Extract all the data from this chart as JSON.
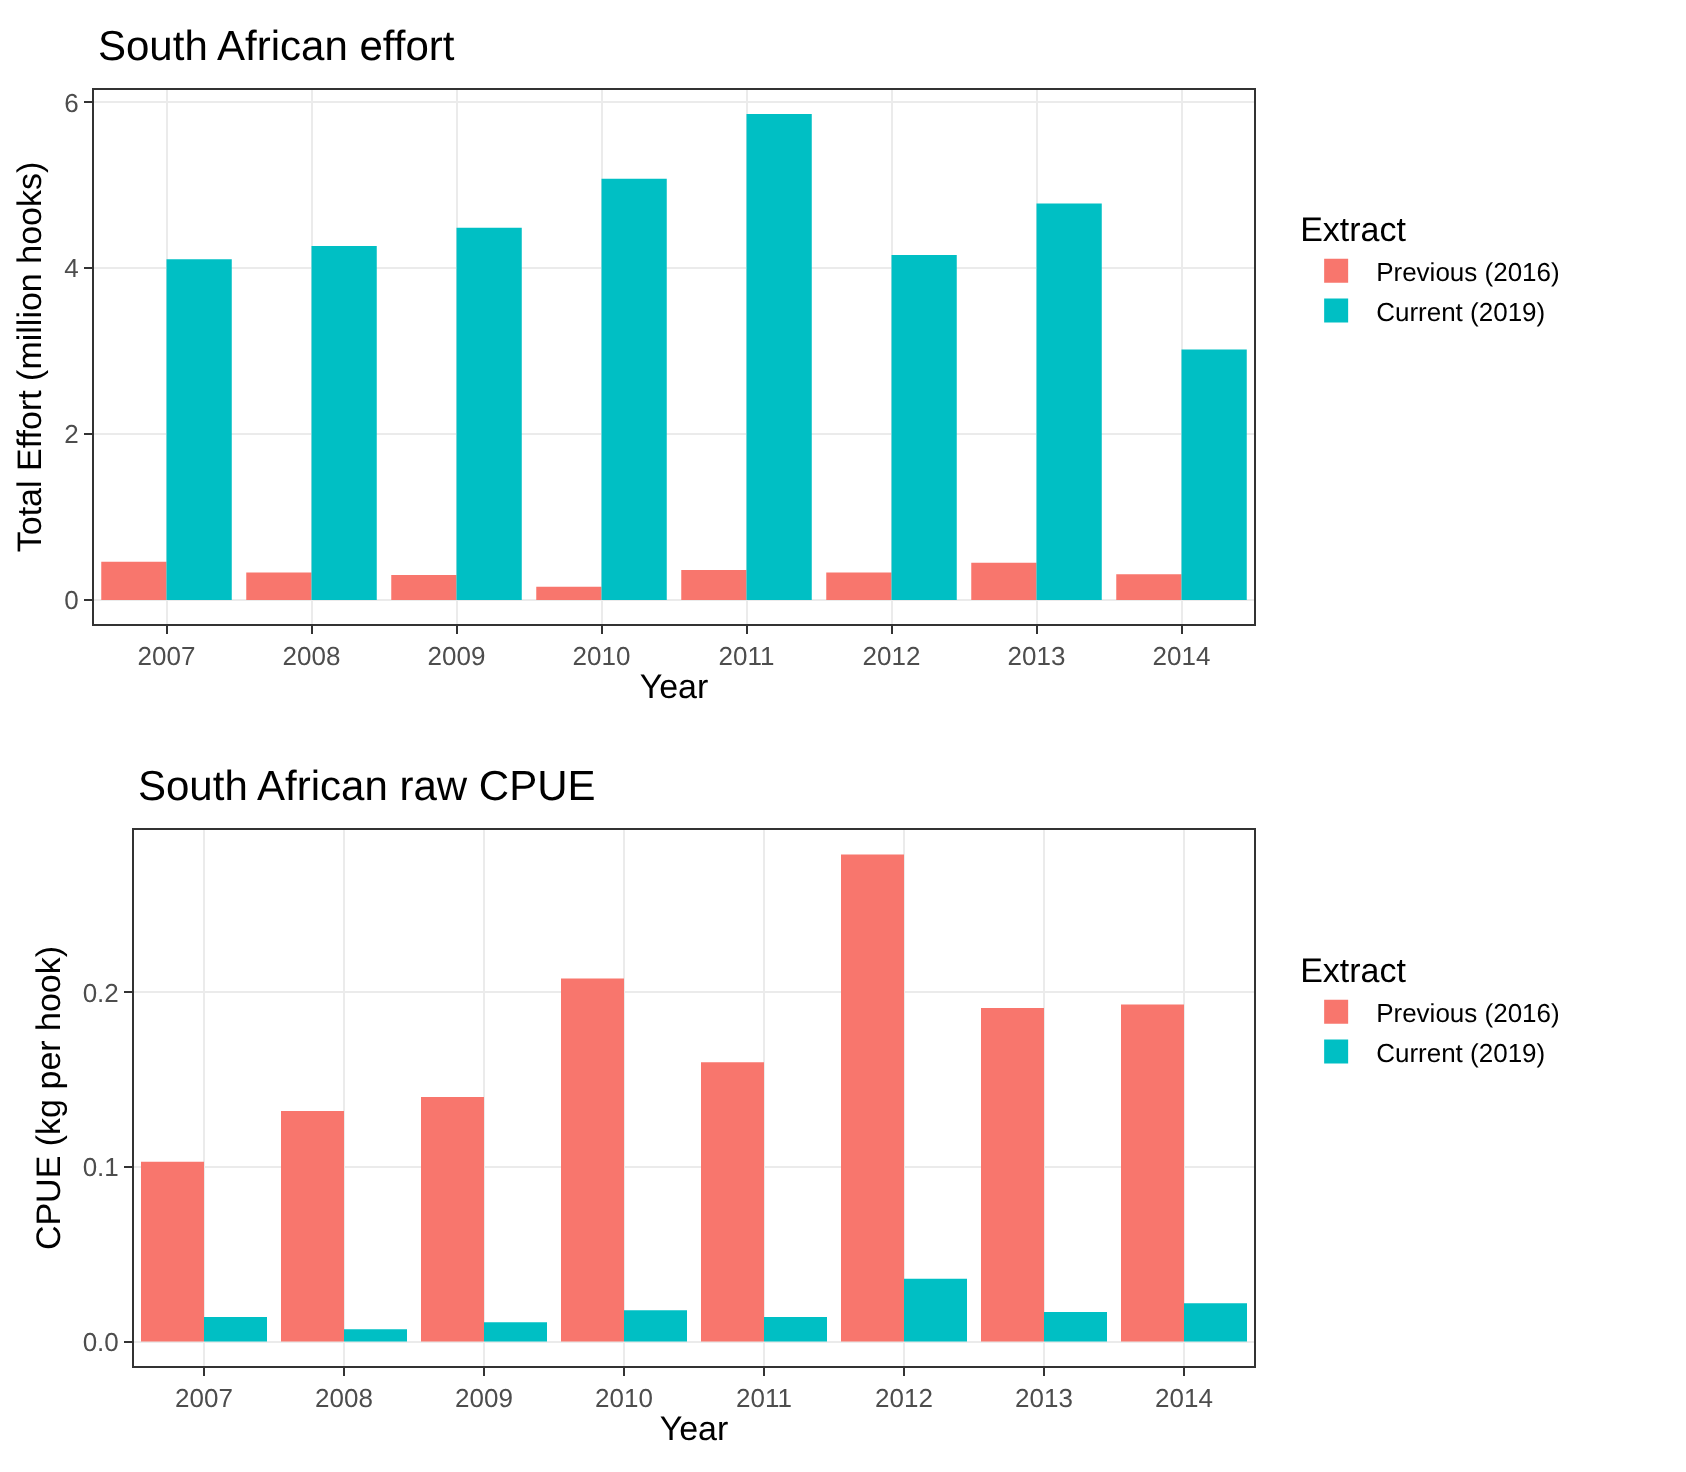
{
  "chart_data": [
    {
      "type": "bar",
      "title": "South African effort",
      "xlabel": "Year",
      "ylabel": "Total Effort (million hooks)",
      "legend_title": "Extract",
      "categories": [
        "2007",
        "2008",
        "2009",
        "2010",
        "2011",
        "2012",
        "2013",
        "2014"
      ],
      "series": [
        {
          "name": "Previous (2016)",
          "color": "#f8766d",
          "values": [
            0.46,
            0.33,
            0.3,
            0.16,
            0.36,
            0.33,
            0.45,
            0.31
          ]
        },
        {
          "name": "Current (2019)",
          "color": "#00bfc4",
          "values": [
            4.11,
            4.27,
            4.49,
            5.08,
            5.86,
            4.16,
            4.78,
            3.02
          ]
        }
      ],
      "ylim": [
        -0.29,
        6.15
      ],
      "yticks": [
        0,
        2,
        4,
        6
      ],
      "grid": true,
      "legend": "right"
    },
    {
      "type": "bar",
      "title": "South African raw CPUE",
      "xlabel": "Year",
      "ylabel": "CPUE (kg per hook)",
      "legend_title": "Extract",
      "categories": [
        "2007",
        "2008",
        "2009",
        "2010",
        "2011",
        "2012",
        "2013",
        "2014"
      ],
      "series": [
        {
          "name": "Previous (2016)",
          "color": "#f8766d",
          "values": [
            0.103,
            0.132,
            0.14,
            0.208,
            0.16,
            0.279,
            0.191,
            0.193
          ]
        },
        {
          "name": "Current (2019)",
          "color": "#00bfc4",
          "values": [
            0.014,
            0.007,
            0.011,
            0.018,
            0.014,
            0.036,
            0.017,
            0.022
          ]
        }
      ],
      "ylim": [
        -0.014,
        0.293
      ],
      "yticks": [
        {
          "value": 0,
          "label": "0.0"
        },
        {
          "value": 0.1,
          "label": "0.1"
        },
        {
          "value": 0.2,
          "label": "0.2"
        }
      ],
      "grid": true,
      "legend": "right"
    }
  ]
}
